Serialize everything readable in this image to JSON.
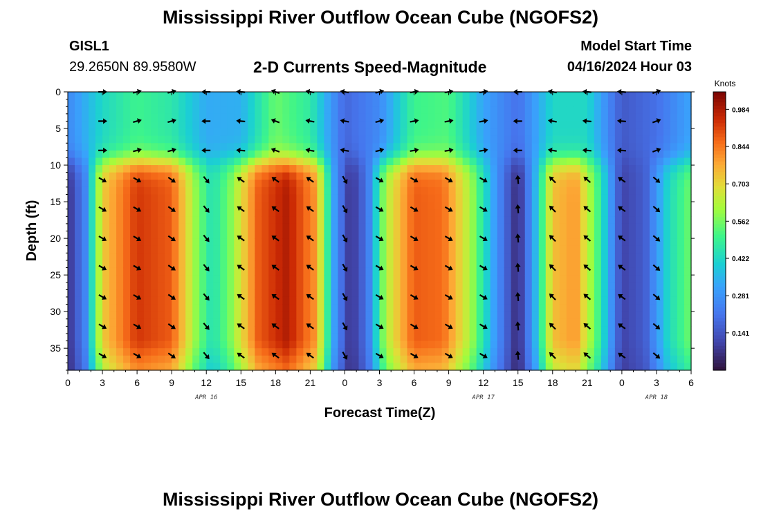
{
  "header": {
    "title": "Mississippi River Outflow Ocean Cube (NGOFS2)",
    "station_id": "GISL1",
    "station_coords": "29.2650N  89.9580W",
    "plot_subtitle": "2-D Currents Speed-Magnitude",
    "start_label": "Model Start Time",
    "start_value": "04/16/2024 Hour 03"
  },
  "footer": {
    "title": "Mississippi River Outflow Ocean Cube (NGOFS2)"
  },
  "chart_data": {
    "type": "heatmap",
    "title": "2-D Currents Speed-Magnitude",
    "xlabel": "Forecast Time(Z)",
    "ylabel": "Depth (ft)",
    "xlim": [
      0,
      54
    ],
    "ylim": [
      0,
      38
    ],
    "y_inverted": true,
    "x_ticks": [
      {
        "hour": 0,
        "label": "0"
      },
      {
        "hour": 3,
        "label": "3"
      },
      {
        "hour": 6,
        "label": "6"
      },
      {
        "hour": 9,
        "label": "9"
      },
      {
        "hour": 12,
        "label": "12"
      },
      {
        "hour": 15,
        "label": "15"
      },
      {
        "hour": 18,
        "label": "18"
      },
      {
        "hour": 21,
        "label": "21"
      },
      {
        "hour": 24,
        "label": "0"
      },
      {
        "hour": 27,
        "label": "3"
      },
      {
        "hour": 30,
        "label": "6"
      },
      {
        "hour": 33,
        "label": "9"
      },
      {
        "hour": 36,
        "label": "12"
      },
      {
        "hour": 39,
        "label": "15"
      },
      {
        "hour": 42,
        "label": "18"
      },
      {
        "hour": 45,
        "label": "21"
      },
      {
        "hour": 48,
        "label": "0"
      },
      {
        "hour": 51,
        "label": "3"
      },
      {
        "hour": 54,
        "label": "6"
      }
    ],
    "y_ticks": [
      0,
      5,
      10,
      15,
      20,
      25,
      30,
      35
    ],
    "date_labels": [
      {
        "hour": 12,
        "label": "APR 16"
      },
      {
        "hour": 36,
        "label": "APR 17"
      },
      {
        "hour": 51,
        "label": "APR 18"
      }
    ],
    "colorbar": {
      "title": "Knots",
      "min": 0,
      "max": 1.05,
      "ticks": [
        0.141,
        0.281,
        0.422,
        0.562,
        0.703,
        0.844,
        0.984
      ],
      "tick_labels": [
        "0.141",
        "0.281",
        "0.422",
        "0.562",
        "0.703",
        "0.844",
        "0.984"
      ]
    },
    "arrow_depths": [
      0,
      4,
      8,
      12,
      16,
      20,
      24,
      28,
      32,
      36
    ],
    "arrow_hours": [
      3,
      6,
      9,
      12,
      15,
      18,
      21,
      24,
      27,
      30,
      33,
      36,
      39,
      42,
      45,
      48,
      51
    ],
    "speed_model": {
      "surface_layer_depth_ft": 9.5,
      "surface": [
        {
          "hour": 0,
          "speed": 0.26
        },
        {
          "hour": 3,
          "speed": 0.42
        },
        {
          "hour": 6,
          "speed": 0.5
        },
        {
          "hour": 9,
          "speed": 0.46
        },
        {
          "hour": 12,
          "speed": 0.33
        },
        {
          "hour": 15,
          "speed": 0.34
        },
        {
          "hour": 18,
          "speed": 0.55
        },
        {
          "hour": 21,
          "speed": 0.47
        },
        {
          "hour": 24,
          "speed": 0.18
        },
        {
          "hour": 27,
          "speed": 0.26
        },
        {
          "hour": 30,
          "speed": 0.5
        },
        {
          "hour": 33,
          "speed": 0.52
        },
        {
          "hour": 36,
          "speed": 0.32
        },
        {
          "hour": 39,
          "speed": 0.2
        },
        {
          "hour": 42,
          "speed": 0.42
        },
        {
          "hour": 45,
          "speed": 0.42
        },
        {
          "hour": 48,
          "speed": 0.15
        },
        {
          "hour": 51,
          "speed": 0.2
        },
        {
          "hour": 54,
          "speed": 0.32
        }
      ],
      "bottom": [
        {
          "hour": 0,
          "speed": 0.06
        },
        {
          "hour": 1.5,
          "speed": 0.25
        },
        {
          "hour": 3,
          "speed": 0.72
        },
        {
          "hour": 6,
          "speed": 0.93
        },
        {
          "hour": 9,
          "speed": 0.88
        },
        {
          "hour": 11,
          "speed": 0.6
        },
        {
          "hour": 12.5,
          "speed": 0.44
        },
        {
          "hour": 14,
          "speed": 0.56
        },
        {
          "hour": 16.5,
          "speed": 0.88
        },
        {
          "hour": 19,
          "speed": 0.98
        },
        {
          "hour": 21.5,
          "speed": 0.8
        },
        {
          "hour": 23,
          "speed": 0.32
        },
        {
          "hour": 24.5,
          "speed": 0.06
        },
        {
          "hour": 26,
          "speed": 0.22
        },
        {
          "hour": 27.5,
          "speed": 0.62
        },
        {
          "hour": 30,
          "speed": 0.88
        },
        {
          "hour": 32.5,
          "speed": 0.86
        },
        {
          "hour": 35,
          "speed": 0.6
        },
        {
          "hour": 37,
          "speed": 0.3
        },
        {
          "hour": 39,
          "speed": 0.04
        },
        {
          "hour": 40.5,
          "speed": 0.35
        },
        {
          "hour": 42,
          "speed": 0.74
        },
        {
          "hour": 44,
          "speed": 0.8
        },
        {
          "hour": 46,
          "speed": 0.5
        },
        {
          "hour": 48,
          "speed": 0.1
        },
        {
          "hour": 50,
          "speed": 0.16
        },
        {
          "hour": 52,
          "speed": 0.42
        },
        {
          "hour": 54,
          "speed": 0.56
        }
      ]
    },
    "direction_model": [
      {
        "hour": 3,
        "surface_deg": 0,
        "deep_deg": -30
      },
      {
        "hour": 6,
        "surface_deg": 15,
        "deep_deg": -30
      },
      {
        "hour": 9,
        "surface_deg": 15,
        "deep_deg": -35
      },
      {
        "hour": 12,
        "surface_deg": 180,
        "deep_deg": -50
      },
      {
        "hour": 15,
        "surface_deg": 175,
        "deep_deg": 145
      },
      {
        "hour": 18,
        "surface_deg": 160,
        "deep_deg": 145
      },
      {
        "hour": 21,
        "surface_deg": 170,
        "deep_deg": 145
      },
      {
        "hour": 24,
        "surface_deg": 170,
        "deep_deg": -60
      },
      {
        "hour": 27,
        "surface_deg": 15,
        "deep_deg": -30
      },
      {
        "hour": 30,
        "surface_deg": 10,
        "deep_deg": -30
      },
      {
        "hour": 33,
        "surface_deg": 10,
        "deep_deg": -30
      },
      {
        "hour": 36,
        "surface_deg": 10,
        "deep_deg": -30
      },
      {
        "hour": 39,
        "surface_deg": 180,
        "deep_deg": 95
      },
      {
        "hour": 42,
        "surface_deg": 170,
        "deep_deg": 135
      },
      {
        "hour": 45,
        "surface_deg": 175,
        "deep_deg": 140
      },
      {
        "hour": 48,
        "surface_deg": 175,
        "deep_deg": 145
      },
      {
        "hour": 51,
        "surface_deg": 20,
        "deep_deg": -40
      }
    ]
  }
}
